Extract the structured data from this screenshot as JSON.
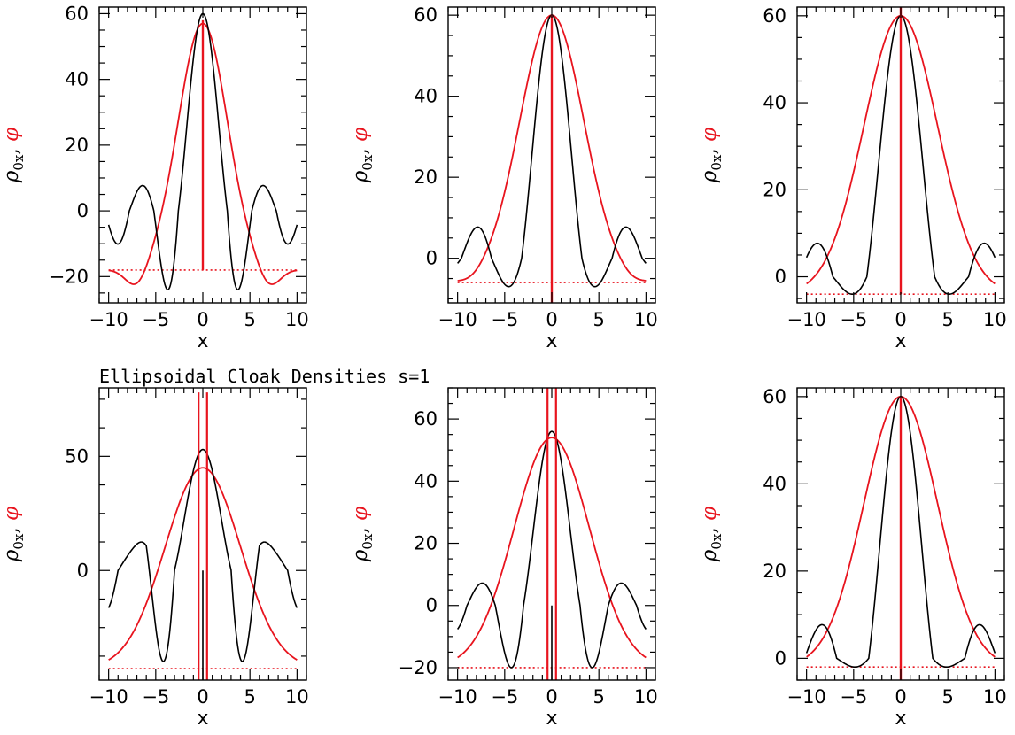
{
  "figure": {
    "title": "Ellipsoidal Cloak Densities s=1",
    "colors": {
      "rho": "#000000",
      "phi": "#e8141e",
      "axis": "#000000"
    }
  },
  "chart_data": [
    {
      "type": "line",
      "xlabel": "x",
      "ylabel_rho": "ρ",
      "ylabel_sub": "0x",
      "ylabel_sep": ",",
      "ylabel_phi": "φ",
      "xlim": [
        -11,
        11
      ],
      "ylim": [
        -28,
        62
      ],
      "xticks": [
        -10,
        -5,
        0,
        5,
        10
      ],
      "yticks": [
        -20,
        0,
        20,
        40,
        60
      ],
      "rho": {
        "kind": "sinc",
        "A": 60,
        "w": 2.6,
        "sidelobe": -24,
        "far": -2
      },
      "phi": {
        "kind": "gauss",
        "peak": 57,
        "base": -18,
        "sigma": 2.6,
        "ripple": -24,
        "rippleX": 7,
        "tail": -16
      },
      "baseline": -18,
      "spike": {
        "x": 0,
        "from": -18,
        "to": 58
      }
    },
    {
      "type": "line",
      "xlabel": "x",
      "ylabel_rho": "ρ",
      "ylabel_sub": "0x",
      "ylabel_sep": ",",
      "ylabel_phi": "φ",
      "xlim": [
        -11,
        11
      ],
      "ylim": [
        -11,
        62
      ],
      "xticks": [
        -10,
        -5,
        0,
        5,
        10
      ],
      "yticks": [
        0,
        20,
        40,
        60
      ],
      "rho": {
        "kind": "sinc",
        "A": 60,
        "w": 3.2,
        "sidelobe": -7,
        "far": 0
      },
      "phi": {
        "kind": "gauss",
        "peak": 60,
        "base": -6,
        "sigma": 3.4,
        "ripple": -7,
        "rippleX": 8.5,
        "tail": -5
      },
      "baseline": -6,
      "spike": {
        "x": 0,
        "from": -11,
        "to": 60
      }
    },
    {
      "type": "line",
      "xlabel": "x",
      "ylabel_rho": "ρ",
      "ylabel_sub": "0x",
      "ylabel_sep": ",",
      "ylabel_phi": "φ",
      "xlim": [
        -11,
        11
      ],
      "ylim": [
        -6,
        62
      ],
      "xticks": [
        -10,
        -5,
        0,
        5,
        10
      ],
      "yticks": [
        0,
        20,
        40,
        60
      ],
      "rho": {
        "kind": "sinc",
        "A": 60,
        "w": 3.6,
        "sidelobe": -4,
        "far": 0
      },
      "phi": {
        "kind": "gauss",
        "peak": 60,
        "base": -4,
        "sigma": 3.9,
        "ripple": -4,
        "rippleX": 9.5,
        "tail": -3
      },
      "baseline": -4,
      "spike": {
        "x": 0,
        "from": -4,
        "to": 62
      }
    },
    {
      "type": "line",
      "xlabel": "x",
      "ylabel_rho": "ρ",
      "ylabel_sub": "0x",
      "ylabel_sep": ",",
      "ylabel_phi": "φ",
      "xlim": [
        -11,
        11
      ],
      "ylim": [
        -48,
        80
      ],
      "xticks": [
        -10,
        -5,
        0,
        5,
        10
      ],
      "yticks": [
        0,
        50
      ],
      "rho": {
        "kind": "sinc2",
        "A": 53,
        "w": 3.0,
        "sidelobe": -43,
        "lobe2": 11,
        "lobe2X": 5.8,
        "far": 0
      },
      "phi": {
        "kind": "gauss",
        "peak": 45,
        "base": -43,
        "sigma": 4.0,
        "ripple": -43,
        "rippleX": 11,
        "tail": -43
      },
      "baseline": -43,
      "spike": {
        "x": 0,
        "from": -48,
        "to": 78,
        "double": true
      }
    },
    {
      "type": "line",
      "xlabel": "x",
      "ylabel_rho": "ρ",
      "ylabel_sub": "0x",
      "ylabel_sep": ",",
      "ylabel_phi": "φ",
      "xlim": [
        -11,
        11
      ],
      "ylim": [
        -24,
        70
      ],
      "xticks": [
        -10,
        -5,
        0,
        5,
        10
      ],
      "yticks": [
        -20,
        0,
        20,
        40,
        60
      ],
      "rho": {
        "kind": "sinc2",
        "A": 56,
        "w": 3.0,
        "sidelobe": -20,
        "lobe2": 0,
        "lobe2X": 10,
        "far": 0
      },
      "phi": {
        "kind": "gauss",
        "peak": 54,
        "base": -20,
        "sigma": 4.0,
        "ripple": -20,
        "rippleX": 11,
        "tail": -19
      },
      "baseline": -20,
      "spike": {
        "x": 0,
        "from": -24,
        "to": 70,
        "double": true
      }
    },
    {
      "type": "line",
      "xlabel": "x",
      "ylabel_rho": "ρ",
      "ylabel_sub": "0x",
      "ylabel_sep": ",",
      "ylabel_phi": "φ",
      "xlim": [
        -11,
        11
      ],
      "ylim": [
        -5,
        62
      ],
      "xticks": [
        -10,
        -5,
        0,
        5,
        10
      ],
      "yticks": [
        0,
        20,
        40,
        60
      ],
      "rho": {
        "kind": "sinc",
        "A": 60,
        "w": 3.4,
        "sidelobe": -2,
        "far": 1
      },
      "phi": {
        "kind": "gauss",
        "peak": 60,
        "base": -2,
        "sigma": 3.9,
        "ripple": -2,
        "rippleX": 9.5,
        "tail": -2
      },
      "baseline": -2,
      "spike": {
        "x": 0,
        "from": -5,
        "to": 60
      }
    }
  ]
}
